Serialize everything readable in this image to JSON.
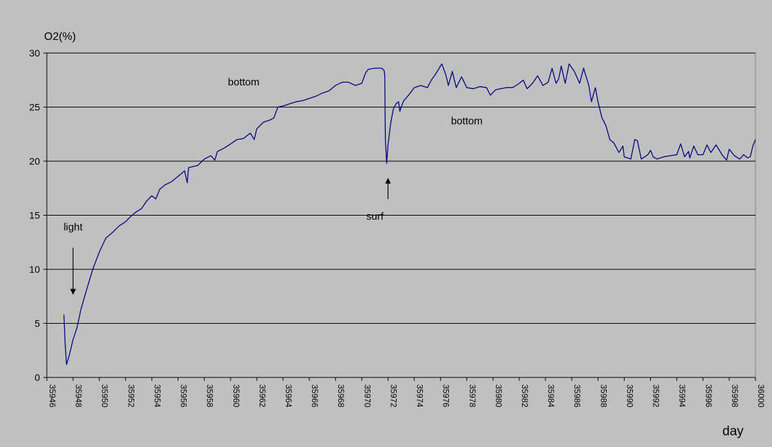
{
  "chart_data": {
    "type": "line",
    "title": "",
    "ylabel": "O2(%)",
    "xlabel": "day",
    "xlim": [
      35946,
      36000
    ],
    "ylim": [
      0,
      30
    ],
    "y_ticks": [
      0,
      5,
      10,
      15,
      20,
      25,
      30
    ],
    "x_ticks": [
      35946,
      35948,
      35950,
      35952,
      35954,
      35956,
      35958,
      35960,
      35962,
      35964,
      35966,
      35968,
      35970,
      35972,
      35974,
      35976,
      35978,
      35980,
      35982,
      35984,
      35986,
      35988,
      35990,
      35992,
      35994,
      35996,
      35998,
      36000
    ],
    "grid": "horizontal",
    "line_color": "#00007f",
    "series": [
      {
        "points": [
          [
            35947.3,
            5.8
          ],
          [
            35947.4,
            3.0
          ],
          [
            35947.5,
            1.2
          ],
          [
            35947.7,
            2.0
          ],
          [
            35948.0,
            3.5
          ],
          [
            35948.3,
            4.6
          ],
          [
            35948.6,
            6.3
          ],
          [
            35949.0,
            8.0
          ],
          [
            35949.5,
            10.0
          ],
          [
            35950.0,
            11.6
          ],
          [
            35950.5,
            12.9
          ],
          [
            35951.0,
            13.4
          ],
          [
            35951.5,
            14.0
          ],
          [
            35952.0,
            14.4
          ],
          [
            35952.4,
            14.9
          ],
          [
            35952.8,
            15.3
          ],
          [
            35953.2,
            15.6
          ],
          [
            35953.6,
            16.3
          ],
          [
            35954.0,
            16.8
          ],
          [
            35954.3,
            16.5
          ],
          [
            35954.6,
            17.4
          ],
          [
            35955.0,
            17.8
          ],
          [
            35955.5,
            18.1
          ],
          [
            35956.0,
            18.6
          ],
          [
            35956.5,
            19.1
          ],
          [
            35956.7,
            18.0
          ],
          [
            35956.8,
            19.4
          ],
          [
            35957.5,
            19.6
          ],
          [
            35958.0,
            20.2
          ],
          [
            35958.5,
            20.5
          ],
          [
            35958.8,
            20.1
          ],
          [
            35959.0,
            20.9
          ],
          [
            35959.5,
            21.2
          ],
          [
            35960.0,
            21.6
          ],
          [
            35960.5,
            22.0
          ],
          [
            35961.0,
            22.1
          ],
          [
            35961.5,
            22.6
          ],
          [
            35961.8,
            22.0
          ],
          [
            35962.0,
            23.0
          ],
          [
            35962.5,
            23.6
          ],
          [
            35963.0,
            23.8
          ],
          [
            35963.3,
            24.0
          ],
          [
            35963.6,
            25.0
          ],
          [
            35964.0,
            25.1
          ],
          [
            35964.5,
            25.3
          ],
          [
            35965.0,
            25.5
          ],
          [
            35965.5,
            25.6
          ],
          [
            35966.0,
            25.8
          ],
          [
            35966.5,
            26.0
          ],
          [
            35967.0,
            26.3
          ],
          [
            35967.5,
            26.5
          ],
          [
            35968.0,
            27.0
          ],
          [
            35968.5,
            27.3
          ],
          [
            35969.0,
            27.3
          ],
          [
            35969.5,
            27.0
          ],
          [
            35970.0,
            27.2
          ],
          [
            35970.3,
            28.2
          ],
          [
            35970.5,
            28.5
          ],
          [
            35971.0,
            28.6
          ],
          [
            35971.5,
            28.6
          ],
          [
            35971.7,
            28.4
          ],
          [
            35971.75,
            28.0
          ],
          [
            35971.8,
            22.0
          ],
          [
            35971.9,
            19.8
          ],
          [
            35972.0,
            21.5
          ],
          [
            35972.2,
            23.5
          ],
          [
            35972.4,
            24.8
          ],
          [
            35972.6,
            25.3
          ],
          [
            35972.8,
            25.5
          ],
          [
            35972.9,
            24.6
          ],
          [
            35973.0,
            25.0
          ],
          [
            35973.2,
            25.6
          ],
          [
            35973.5,
            26.0
          ],
          [
            35974.0,
            26.8
          ],
          [
            35974.5,
            27.0
          ],
          [
            35975.0,
            26.8
          ],
          [
            35975.3,
            27.5
          ],
          [
            35975.6,
            28.0
          ],
          [
            35975.9,
            28.6
          ],
          [
            35976.1,
            29.0
          ],
          [
            35976.4,
            28.0
          ],
          [
            35976.6,
            27.0
          ],
          [
            35976.9,
            28.3
          ],
          [
            35977.2,
            26.8
          ],
          [
            35977.6,
            27.8
          ],
          [
            35978.0,
            26.8
          ],
          [
            35978.5,
            26.7
          ],
          [
            35979.0,
            26.9
          ],
          [
            35979.5,
            26.8
          ],
          [
            35979.8,
            26.1
          ],
          [
            35980.2,
            26.6
          ],
          [
            35980.6,
            26.7
          ],
          [
            35981.0,
            26.8
          ],
          [
            35981.5,
            26.8
          ],
          [
            35982.0,
            27.2
          ],
          [
            35982.3,
            27.5
          ],
          [
            35982.6,
            26.7
          ],
          [
            35983.0,
            27.2
          ],
          [
            35983.4,
            27.9
          ],
          [
            35983.8,
            27.0
          ],
          [
            35984.2,
            27.3
          ],
          [
            35984.5,
            28.6
          ],
          [
            35984.8,
            27.2
          ],
          [
            35985.0,
            27.6
          ],
          [
            35985.2,
            28.8
          ],
          [
            35985.5,
            27.2
          ],
          [
            35985.8,
            29.0
          ],
          [
            35986.2,
            28.3
          ],
          [
            35986.6,
            27.2
          ],
          [
            35986.9,
            28.6
          ],
          [
            35987.3,
            27.0
          ],
          [
            35987.5,
            25.5
          ],
          [
            35987.8,
            26.8
          ],
          [
            35988.0,
            25.5
          ],
          [
            35988.3,
            24.0
          ],
          [
            35988.6,
            23.3
          ],
          [
            35988.9,
            22.0
          ],
          [
            35989.2,
            21.7
          ],
          [
            35989.6,
            20.8
          ],
          [
            35989.9,
            21.4
          ],
          [
            35990.0,
            20.4
          ],
          [
            35990.5,
            20.2
          ],
          [
            35990.8,
            22.0
          ],
          [
            35991.0,
            21.9
          ],
          [
            35991.3,
            20.2
          ],
          [
            35991.8,
            20.6
          ],
          [
            35992.0,
            21.0
          ],
          [
            35992.2,
            20.4
          ],
          [
            35992.5,
            20.2
          ],
          [
            35993.0,
            20.4
          ],
          [
            35993.5,
            20.5
          ],
          [
            35994.0,
            20.6
          ],
          [
            35994.3,
            21.6
          ],
          [
            35994.6,
            20.4
          ],
          [
            35994.9,
            20.9
          ],
          [
            35995.0,
            20.3
          ],
          [
            35995.3,
            21.4
          ],
          [
            35995.6,
            20.6
          ],
          [
            35996.0,
            20.6
          ],
          [
            35996.3,
            21.5
          ],
          [
            35996.6,
            20.8
          ],
          [
            35997.0,
            21.5
          ],
          [
            35997.5,
            20.5
          ],
          [
            35997.8,
            20.1
          ],
          [
            35998.0,
            21.1
          ],
          [
            35998.4,
            20.5
          ],
          [
            35998.8,
            20.2
          ],
          [
            35999.1,
            20.6
          ],
          [
            35999.4,
            20.3
          ],
          [
            35999.6,
            20.4
          ],
          [
            35999.8,
            21.4
          ],
          [
            36000.0,
            22.0
          ]
        ]
      }
    ],
    "annotations": [
      {
        "text": "light",
        "at": [
          35948.0,
          13.6
        ],
        "arrow": {
          "from": [
            35948.0,
            12.0
          ],
          "to": [
            35948.0,
            7.7
          ]
        }
      },
      {
        "text": "bottom",
        "at": [
          35961.0,
          27.0
        ]
      },
      {
        "text": "bottom",
        "at": [
          35978.0,
          23.4
        ]
      },
      {
        "text": "surf",
        "at": [
          35971.0,
          14.6
        ],
        "arrow": {
          "from": [
            35972.0,
            16.5
          ],
          "to": [
            35972.0,
            18.4
          ]
        }
      }
    ]
  }
}
